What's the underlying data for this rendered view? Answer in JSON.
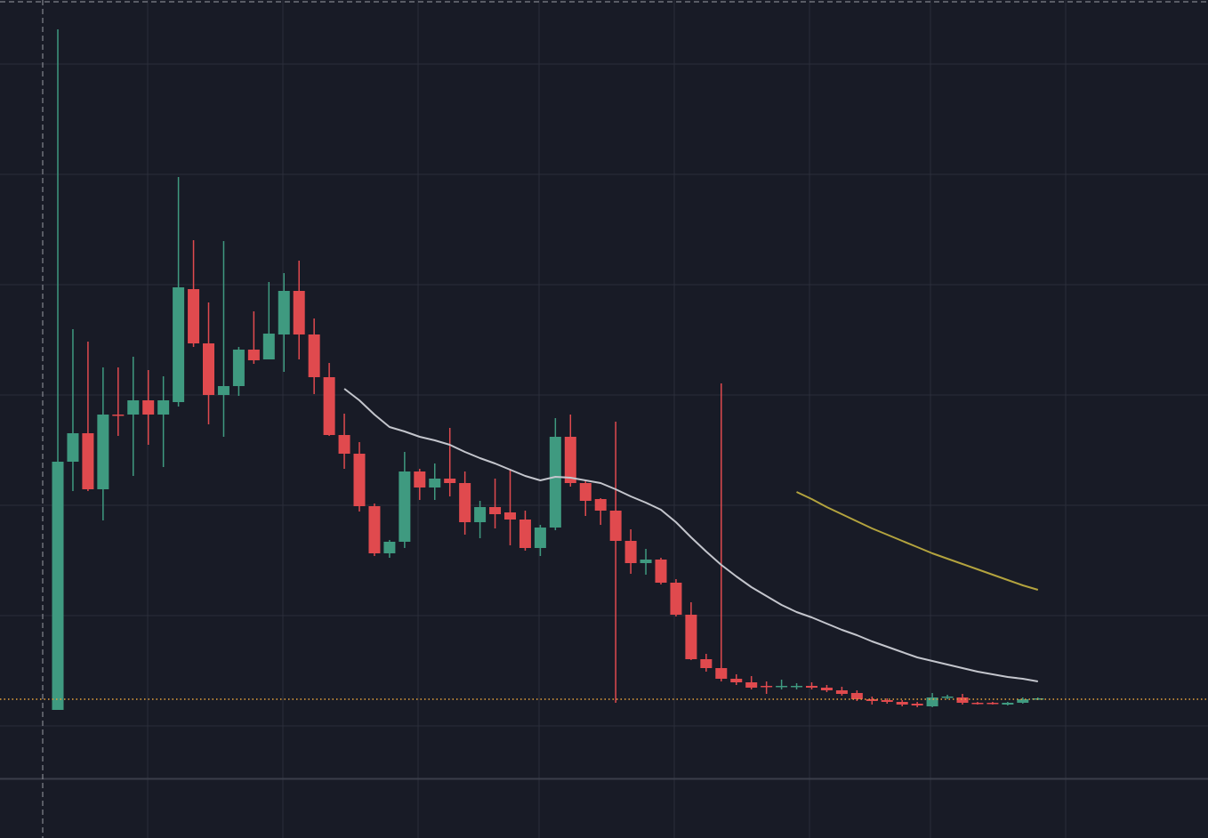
{
  "chart_data": {
    "type": "candlestick",
    "categories": [
      null,
      null,
      null,
      null,
      null,
      null,
      null,
      null,
      null,
      null,
      null,
      null,
      null,
      null,
      null,
      null,
      null,
      null,
      null,
      null,
      null,
      null,
      null,
      null,
      null,
      null,
      null,
      null,
      null,
      null,
      null,
      null,
      null,
      null,
      null,
      null,
      null,
      null,
      null,
      null,
      null,
      null,
      null,
      null,
      null,
      null,
      null,
      null,
      null,
      null,
      null,
      null,
      null,
      null,
      null,
      null,
      null,
      null,
      null,
      null,
      null,
      null,
      null,
      null,
      null,
      null
    ],
    "open": [
      18,
      297,
      329,
      266,
      350,
      350,
      366,
      350,
      364,
      491,
      430,
      372,
      382,
      423,
      412,
      440,
      489,
      440,
      392,
      327,
      306,
      247,
      194,
      207,
      286,
      268,
      278,
      273,
      229,
      246,
      240,
      232,
      200,
      223,
      325,
      273,
      255,
      242,
      208,
      183,
      187,
      161,
      125,
      75,
      65,
      53,
      49,
      45,
      44,
      44,
      45,
      43,
      40,
      37,
      30,
      29,
      27,
      25,
      22,
      32,
      32,
      26,
      26,
      24,
      26,
      30
    ],
    "high": [
      783,
      446,
      432,
      403,
      403,
      415,
      400,
      393,
      617,
      546,
      476,
      545,
      426,
      466,
      499,
      509,
      523,
      458,
      408,
      351,
      319,
      250,
      209,
      308,
      289,
      295,
      335,
      286,
      253,
      278,
      289,
      242,
      226,
      346,
      350,
      276,
      256,
      342,
      221,
      199,
      189,
      165,
      139,
      81,
      385,
      58,
      56,
      50,
      52,
      48,
      49,
      46,
      44,
      40,
      33,
      31,
      29,
      27,
      37,
      35,
      36,
      27,
      27,
      27,
      32,
      32
    ],
    "low": [
      18,
      264,
      264,
      231,
      326,
      281,
      316,
      291,
      359,
      426,
      339,
      325,
      371,
      407,
      412,
      398,
      412,
      373,
      326,
      289,
      241,
      191,
      189,
      200,
      254,
      254,
      258,
      215,
      211,
      222,
      203,
      197,
      191,
      220,
      269,
      236,
      226,
      26,
      171,
      170,
      159,
      123,
      74,
      61,
      50,
      46,
      41,
      36,
      41,
      41,
      41,
      38,
      34,
      28,
      24,
      25,
      22,
      21,
      21,
      30,
      24,
      24,
      24,
      23,
      25,
      29
    ],
    "close": [
      297,
      329,
      266,
      350,
      349,
      366,
      350,
      366,
      493,
      430,
      372,
      382,
      423,
      411,
      441,
      489,
      440,
      392,
      327,
      306,
      247,
      194,
      207,
      286,
      268,
      278,
      273,
      229,
      246,
      238,
      232,
      200,
      223,
      325,
      273,
      253,
      242,
      208,
      183,
      187,
      161,
      125,
      75,
      65,
      53,
      49,
      43,
      44,
      45,
      45,
      43,
      40,
      36,
      30,
      28,
      27,
      24,
      23,
      32,
      33,
      26,
      25,
      25,
      26,
      30,
      31
    ],
    "up_color": "#3f9a80",
    "down_color": "#e04a4e",
    "series": [
      {
        "color": "#c3c5cc",
        "values": [
          null,
          null,
          null,
          null,
          null,
          null,
          null,
          null,
          null,
          null,
          null,
          null,
          null,
          null,
          null,
          null,
          null,
          null,
          null,
          379,
          366,
          350,
          336,
          331,
          325,
          321,
          316,
          308,
          301,
          295,
          288,
          281,
          276,
          280,
          279,
          276,
          273,
          266,
          258,
          251,
          243,
          229,
          212,
          196,
          181,
          168,
          156,
          146,
          136,
          128,
          122,
          115,
          108,
          102,
          95,
          89,
          83,
          77,
          73,
          69,
          65,
          61,
          58,
          55,
          53,
          50
        ]
      },
      {
        "color": "#b3a33e",
        "values": [
          null,
          null,
          null,
          null,
          null,
          null,
          null,
          null,
          null,
          null,
          null,
          null,
          null,
          null,
          null,
          null,
          null,
          null,
          null,
          null,
          null,
          null,
          null,
          null,
          null,
          null,
          null,
          null,
          null,
          null,
          null,
          null,
          null,
          null,
          null,
          null,
          null,
          null,
          null,
          null,
          null,
          null,
          null,
          null,
          null,
          null,
          null,
          null,
          null,
          263,
          255,
          246,
          238,
          230,
          222,
          215,
          208,
          201,
          194,
          188,
          182,
          176,
          170,
          164,
          158,
          153
        ]
      }
    ],
    "price_line": 30,
    "price_line_color": "#e8a33d",
    "ylim": [
      -59,
      816
    ],
    "yticks": [
      0,
      124,
      248,
      372,
      496,
      620,
      744
    ],
    "grid": true
  }
}
